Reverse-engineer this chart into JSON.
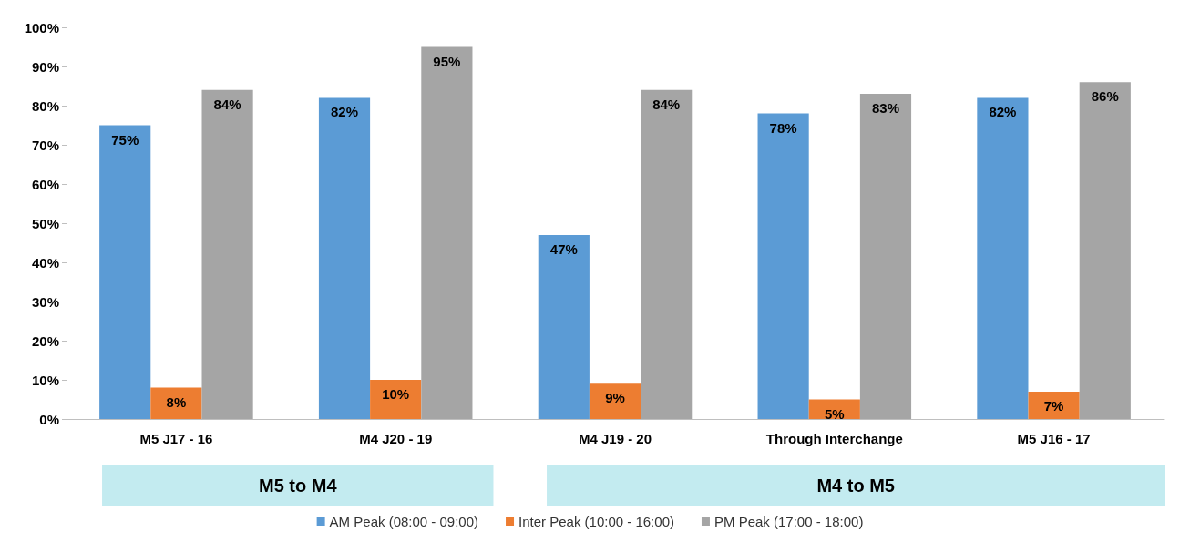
{
  "chart_data": {
    "type": "bar",
    "categories": [
      "M5 J17 - 16",
      "M4 J20 - 19",
      "M4 J19 - 20",
      "Through Interchange",
      "M5 J16 - 17"
    ],
    "series": [
      {
        "name": "AM Peak (08:00 - 09:00)",
        "color": "#5b9bd5",
        "values": [
          75,
          82,
          47,
          78,
          82
        ],
        "value_labels": [
          "75%",
          "82%",
          "47%",
          "78%",
          "82%"
        ]
      },
      {
        "name": "Inter Peak (10:00 - 16:00)",
        "color": "#ed7d31",
        "values": [
          8,
          10,
          9,
          5,
          7
        ],
        "value_labels": [
          "8%",
          "10%",
          "9%",
          "5%",
          "7%"
        ]
      },
      {
        "name": "PM Peak (17:00 - 18:00)",
        "color": "#a5a5a5",
        "values": [
          84,
          95,
          84,
          83,
          86
        ],
        "value_labels": [
          "84%",
          "95%",
          "84%",
          "83%",
          "86%"
        ]
      }
    ],
    "ylim": [
      0,
      100
    ],
    "yticks": [
      {
        "value": 0,
        "label": "0%"
      },
      {
        "value": 10,
        "label": "10%"
      },
      {
        "value": 20,
        "label": "20%"
      },
      {
        "value": 30,
        "label": "30%"
      },
      {
        "value": 40,
        "label": "40%"
      },
      {
        "value": 50,
        "label": "50%"
      },
      {
        "value": 60,
        "label": "60%"
      },
      {
        "value": 70,
        "label": "70%"
      },
      {
        "value": 80,
        "label": "80%"
      },
      {
        "value": 90,
        "label": "90%"
      },
      {
        "value": 100,
        "label": "100%"
      }
    ],
    "annotations": [
      "M5 to M4",
      "M4 to M5"
    ],
    "grid": false,
    "legend": "bottom"
  }
}
